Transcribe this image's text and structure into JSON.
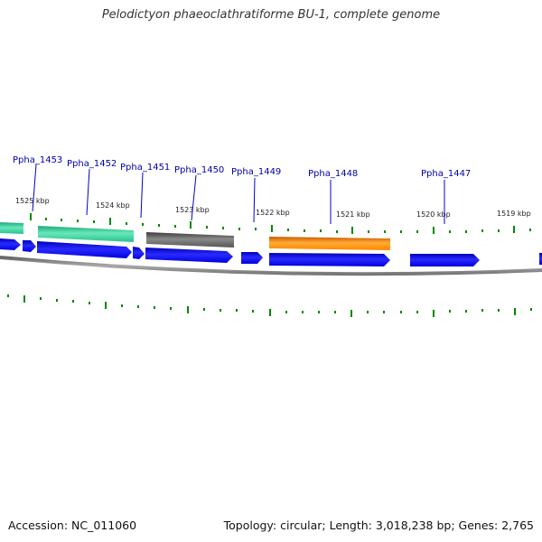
{
  "title": "Pelodictyon phaeoclathratiforme BU-1, complete genome",
  "footer": {
    "accession": "Accession: NC_011060",
    "summary": "Topology: circular; Length: 3,018,238 bp; Genes: 2,765"
  },
  "colors": {
    "gene_label": "#0000aa",
    "leader_line": "#0000cc",
    "cds_blue": "#0000ee",
    "ticks": "#008800",
    "backbone": "#888888",
    "feature_teal": "#33cc99",
    "feature_gray": "#555555",
    "feature_orange": "#ff8800"
  },
  "kbp_labels": [
    "1525 kbp",
    "1524 kbp",
    "1523 kbp",
    "1522 kbp",
    "1521 kbp",
    "1520 kbp",
    "1519 kbp"
  ],
  "gene_labels": [
    "Ppha_1453",
    "Ppha_1452",
    "Ppha_1451",
    "Ppha_1450",
    "Ppha_1449",
    "Ppha_1448",
    "Ppha_1447"
  ]
}
